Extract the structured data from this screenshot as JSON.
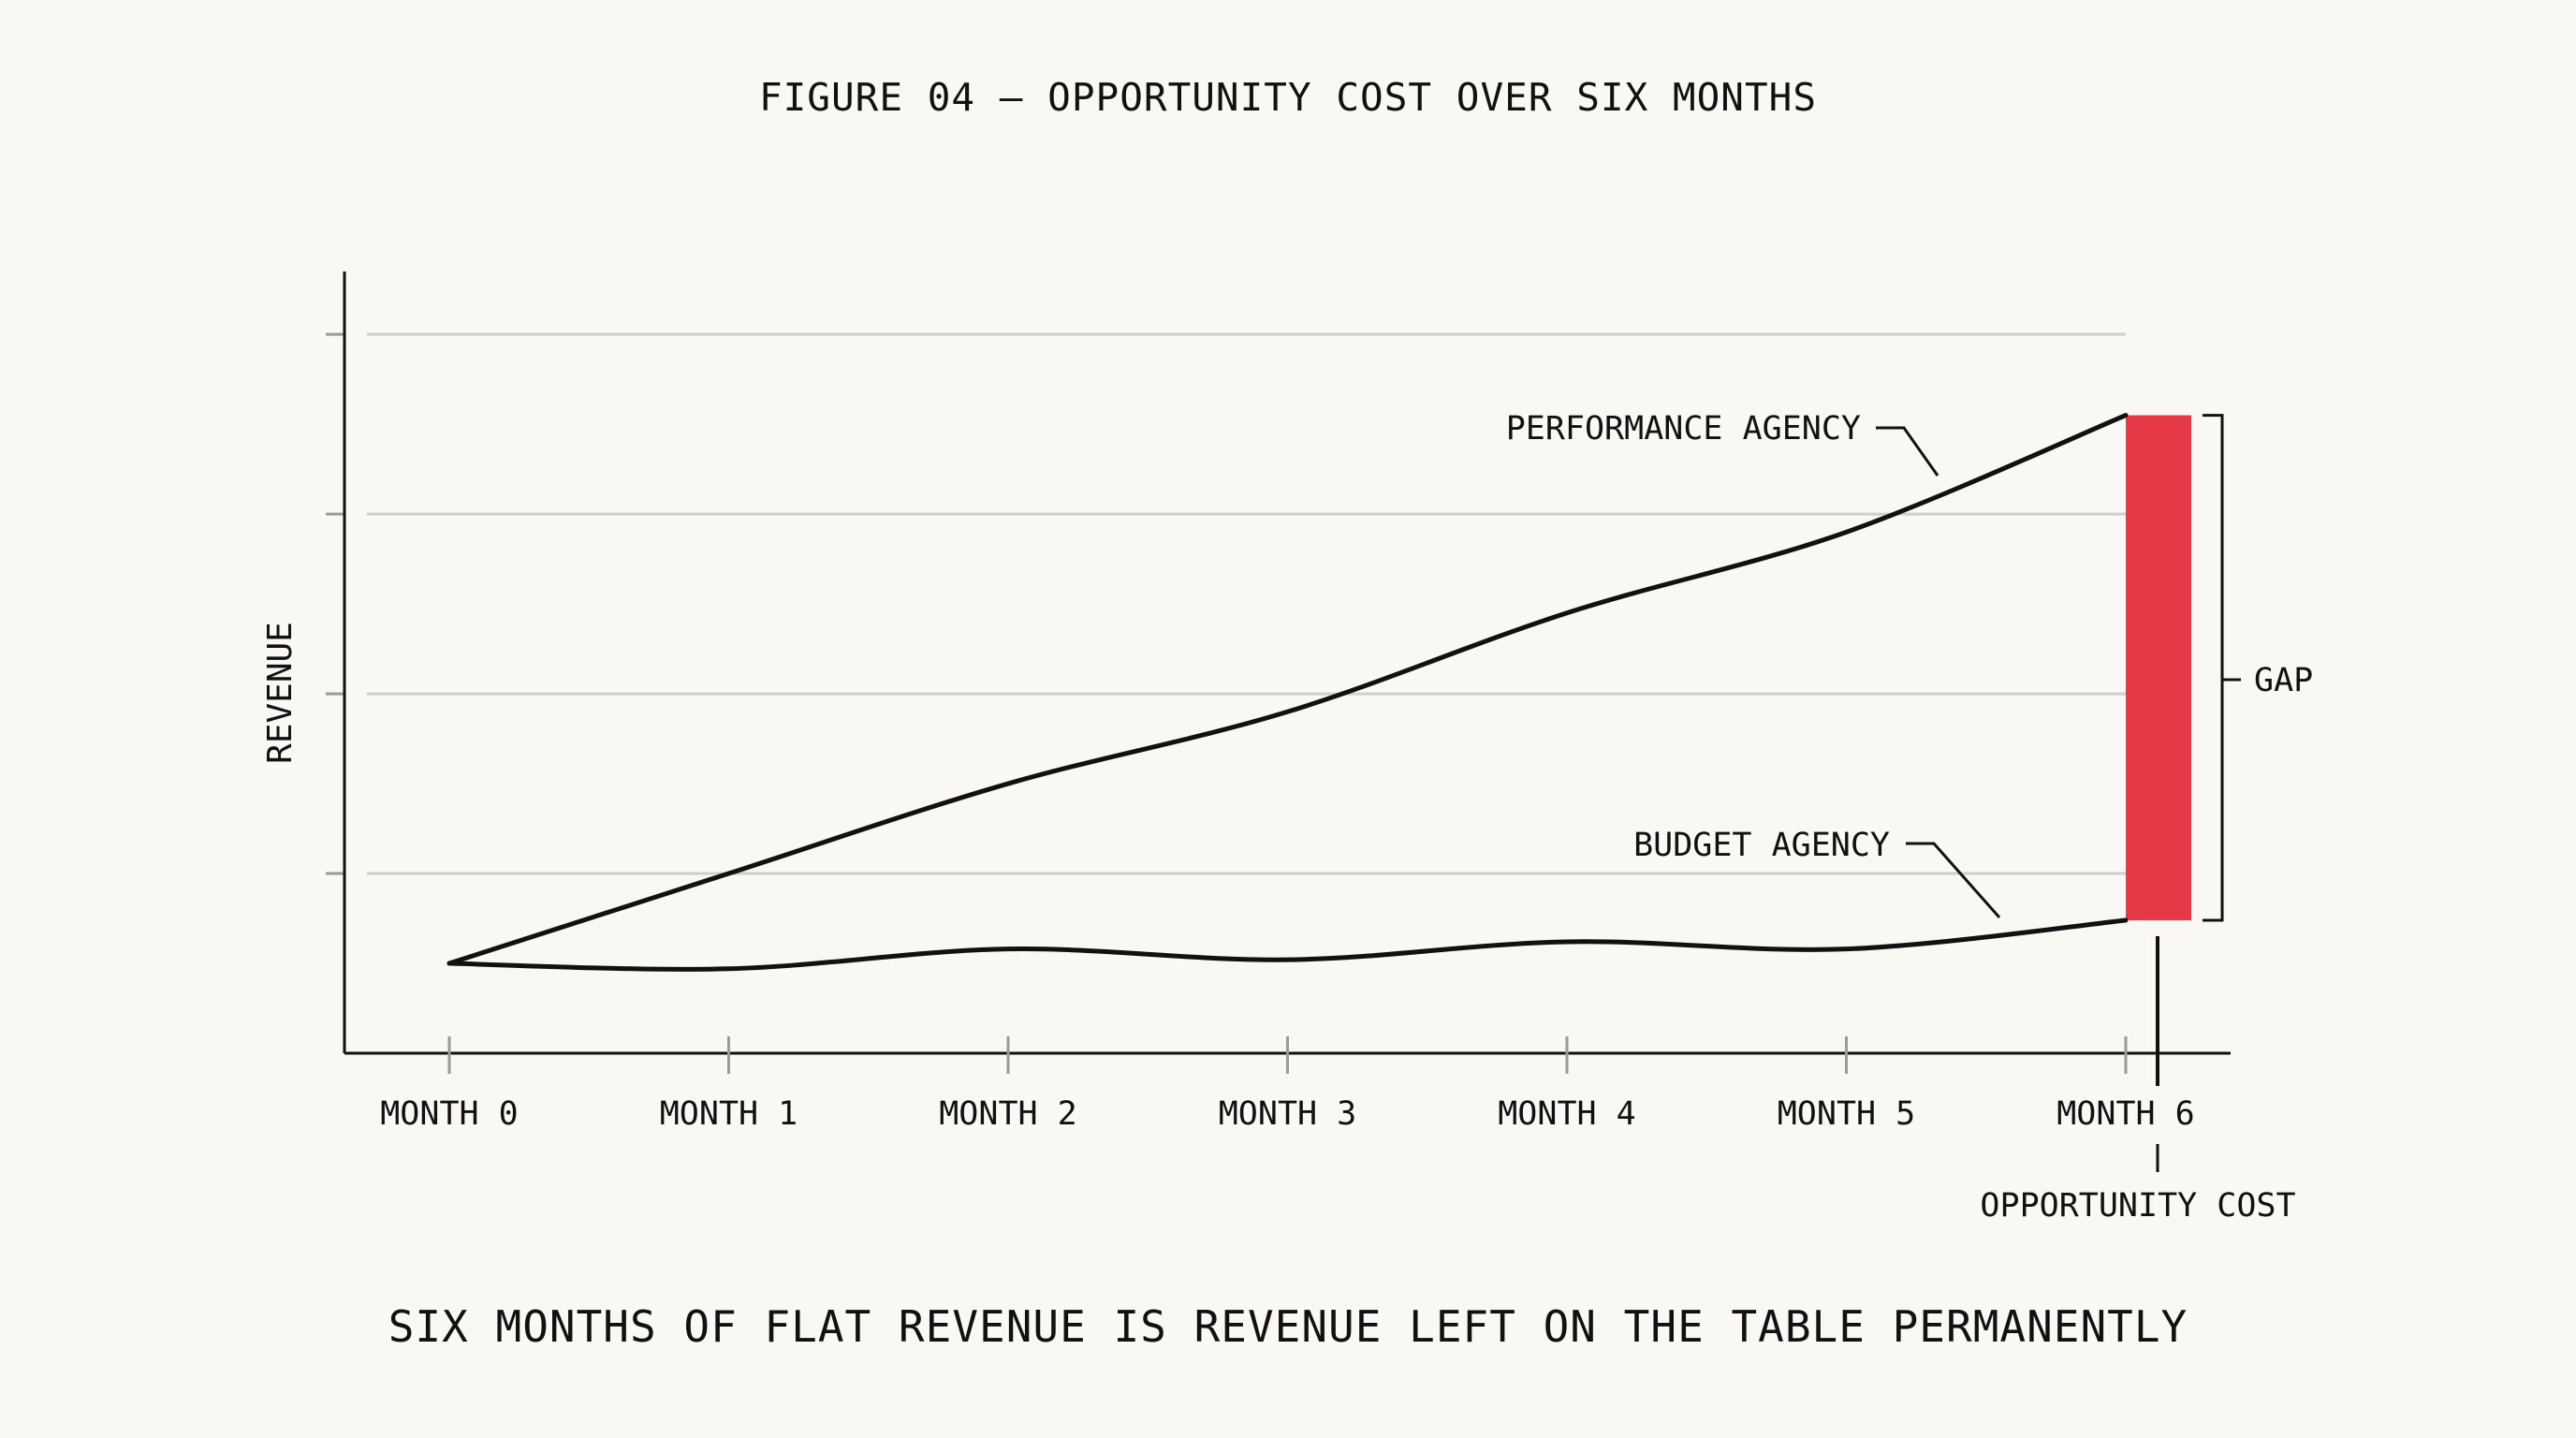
{
  "title": "FIGURE 04 — OPPORTUNITY COST OVER SIX MONTHS",
  "caption": "SIX MONTHS OF FLAT REVENUE IS REVENUE LEFT ON THE TABLE PERMANENTLY",
  "annotations": {
    "gap": "GAP",
    "opportunity_cost": "OPPORTUNITY COST"
  },
  "colors": {
    "background": "#f9f8f4",
    "line": "#111111",
    "gap_bar": "#e63946",
    "grid": "#cfcfcb"
  },
  "chart_data": {
    "type": "line",
    "title": "FIGURE 04 — OPPORTUNITY COST OVER SIX MONTHS",
    "xlabel": "",
    "ylabel": "REVENUE",
    "categories": [
      "MONTH 0",
      "MONTH 1",
      "MONTH 2",
      "MONTH 3",
      "MONTH 4",
      "MONTH 5",
      "MONTH 6"
    ],
    "x": [
      0,
      1,
      2,
      3,
      4,
      5,
      6
    ],
    "ylim": [
      0,
      4.35
    ],
    "yticks": [
      1,
      2,
      3,
      4
    ],
    "grid": true,
    "legend": "none",
    "series": [
      {
        "name": "PERFORMANCE AGENCY",
        "values": [
          0.5,
          1.0,
          1.5,
          1.9,
          2.45,
          2.9,
          3.55
        ]
      },
      {
        "name": "BUDGET AGENCY",
        "values": [
          0.5,
          0.47,
          0.58,
          0.52,
          0.62,
          0.58,
          0.74
        ]
      }
    ],
    "gap": {
      "x": 6,
      "from": 0.74,
      "to": 3.55
    }
  }
}
